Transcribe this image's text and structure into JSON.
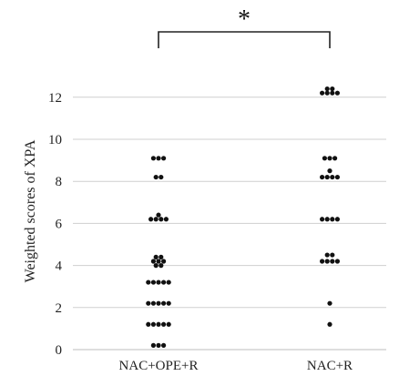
{
  "chart_data": {
    "type": "scatter",
    "title": "",
    "xlabel": "",
    "ylabel": "Weighted scores of XPA",
    "ylim": [
      0,
      13
    ],
    "y_ticks": [
      0,
      2,
      4,
      6,
      8,
      10,
      12
    ],
    "grid": "horizontal",
    "categories": [
      "NAC+OPE+R",
      "NAC+R"
    ],
    "series": [
      {
        "category": "NAC+OPE+R",
        "values": [
          9.1,
          9.1,
          9.1,
          8.2,
          8.2,
          6.4,
          6.2,
          6.2,
          6.2,
          6.2,
          4.4,
          4.4,
          4.2,
          4.2,
          4.2,
          4.0,
          4.0,
          3.2,
          3.2,
          3.2,
          3.2,
          3.2,
          2.2,
          2.2,
          2.2,
          2.2,
          2.2,
          1.2,
          1.2,
          1.2,
          1.2,
          1.2,
          0.2,
          0.2,
          0.2
        ]
      },
      {
        "category": "NAC+R",
        "values": [
          12.4,
          12.4,
          12.2,
          12.2,
          12.2,
          12.2,
          9.1,
          9.1,
          9.1,
          8.5,
          8.2,
          8.2,
          8.2,
          8.2,
          6.2,
          6.2,
          6.2,
          6.2,
          4.5,
          4.5,
          4.2,
          4.2,
          4.2,
          4.2,
          2.2,
          1.2
        ]
      }
    ],
    "annotations": [
      {
        "type": "significance-bracket",
        "between": [
          "NAC+OPE+R",
          "NAC+R"
        ],
        "label": "*"
      }
    ]
  }
}
